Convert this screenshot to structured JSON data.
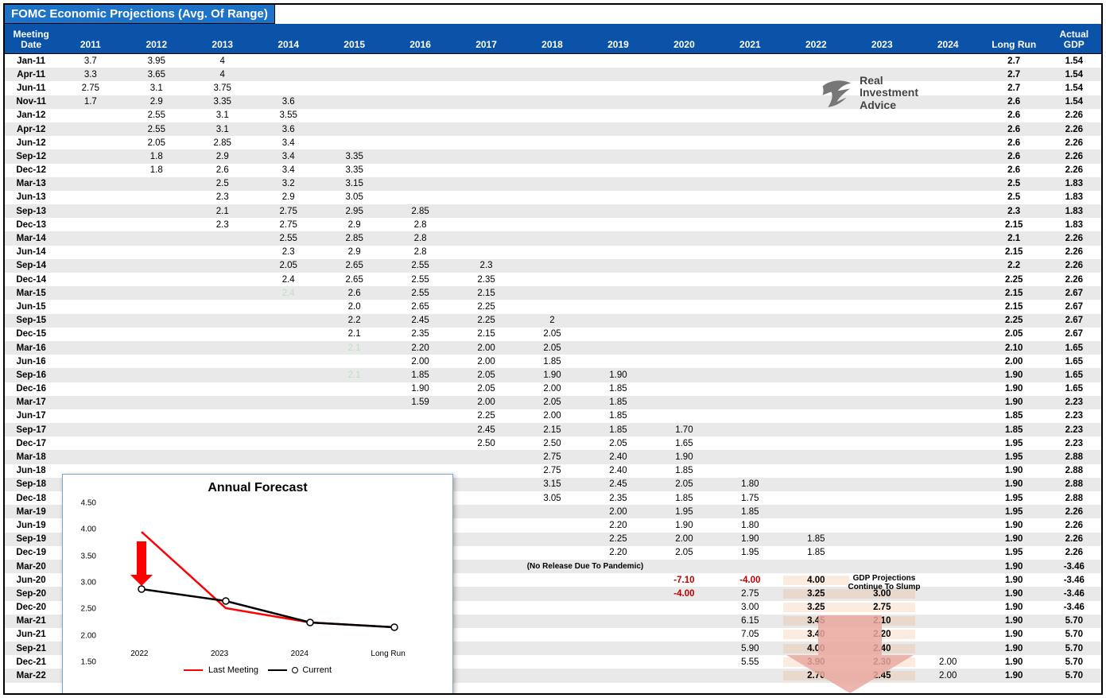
{
  "title": "FOMC Economic Projections (Avg. Of Range)",
  "colors": {
    "title_bg": "#1e72c8",
    "header_bg": "#0a53a8",
    "row_even": "#e9e9e9",
    "row_odd": "#ffffff",
    "negative": "#c00000",
    "highlight_fill": "rgba(237,125,49,0.15)",
    "chart_border": "#7fa6cc",
    "last_meeting_line": "#ff0000",
    "current_line": "#000000",
    "arrow_fill": "#e9a9a0"
  },
  "logo_text": [
    "Real",
    "Investment",
    "Advice"
  ],
  "gdp_note": "GDP Projections Continue To Slump",
  "headers": {
    "meeting": "Meeting\nDate",
    "years": [
      "2011",
      "2012",
      "2013",
      "2014",
      "2015",
      "2016",
      "2017",
      "2018",
      "2019",
      "2020",
      "2021",
      "2022",
      "2023",
      "2024"
    ],
    "long_run": "Long Run",
    "actual_gdp": "Actual\nGDP"
  },
  "rows": [
    {
      "label": "Jan-11",
      "cells": {
        "2011": "3.7",
        "2012": "3.95",
        "2013": "4"
      },
      "long_run": "2.7",
      "gdp": "1.54"
    },
    {
      "label": "Apr-11",
      "cells": {
        "2011": "3.3",
        "2012": "3.65",
        "2013": "4"
      },
      "long_run": "2.7",
      "gdp": "1.54"
    },
    {
      "label": "Jun-11",
      "cells": {
        "2011": "2.75",
        "2012": "3.1",
        "2013": "3.75"
      },
      "long_run": "2.7",
      "gdp": "1.54"
    },
    {
      "label": "Nov-11",
      "cells": {
        "2011": "1.7",
        "2012": "2.9",
        "2013": "3.35",
        "2014": "3.6"
      },
      "long_run": "2.6",
      "gdp": "1.54"
    },
    {
      "label": "Jan-12",
      "cells": {
        "2012": "2.55",
        "2013": "3.1",
        "2014": "3.55"
      },
      "long_run": "2.6",
      "gdp": "2.26"
    },
    {
      "label": "Apr-12",
      "cells": {
        "2012": "2.55",
        "2013": "3.1",
        "2014": "3.6"
      },
      "long_run": "2.6",
      "gdp": "2.26"
    },
    {
      "label": "Jun-12",
      "cells": {
        "2012": "2.05",
        "2013": "2.85",
        "2014": "3.4"
      },
      "long_run": "2.6",
      "gdp": "2.26"
    },
    {
      "label": "Sep-12",
      "cells": {
        "2012": "1.8",
        "2013": "2.9",
        "2014": "3.4",
        "2015": "3.35"
      },
      "long_run": "2.6",
      "gdp": "2.26"
    },
    {
      "label": "Dec-12",
      "cells": {
        "2012": "1.8",
        "2013": "2.6",
        "2014": "3.4",
        "2015": "3.35"
      },
      "long_run": "2.6",
      "gdp": "2.26"
    },
    {
      "label": "Mar-13",
      "cells": {
        "2013": "2.5",
        "2014": "3.2",
        "2015": "3.15"
      },
      "long_run": "2.5",
      "gdp": "1.83"
    },
    {
      "label": "Jun-13",
      "cells": {
        "2013": "2.3",
        "2014": "2.9",
        "2015": "3.05"
      },
      "long_run": "2.5",
      "gdp": "1.83"
    },
    {
      "label": "Sep-13",
      "cells": {
        "2013": "2.1",
        "2014": "2.75",
        "2015": "2.95",
        "2016": "2.85"
      },
      "long_run": "2.3",
      "gdp": "1.83"
    },
    {
      "label": "Dec-13",
      "cells": {
        "2013": "2.3",
        "2014": "2.75",
        "2015": "2.9",
        "2016": "2.8"
      },
      "long_run": "2.15",
      "gdp": "1.83"
    },
    {
      "label": "Mar-14",
      "cells": {
        "2014": "2.55",
        "2015": "2.85",
        "2016": "2.8"
      },
      "long_run": "2.1",
      "gdp": "2.26"
    },
    {
      "label": "Jun-14",
      "cells": {
        "2014": "2.3",
        "2015": "2.9",
        "2016": "2.8"
      },
      "long_run": "2.15",
      "gdp": "2.26"
    },
    {
      "label": "Sep-14",
      "cells": {
        "2014": "2.05",
        "2015": "2.65",
        "2016": "2.55",
        "2017": "2.3"
      },
      "long_run": "2.2",
      "gdp": "2.26"
    },
    {
      "label": "Dec-14",
      "cells": {
        "2014": "2.4",
        "2015": "2.65",
        "2016": "2.55",
        "2017": "2.35"
      },
      "long_run": "2.25",
      "gdp": "2.26"
    },
    {
      "label": "Mar-15",
      "cells": {
        "2015": "2.6",
        "2016": "2.55",
        "2017": "2.15"
      },
      "long_run": "2.15",
      "gdp": "2.67",
      "faded": {
        "2014": "2.4"
      }
    },
    {
      "label": "Jun-15",
      "cells": {
        "2015": "2.0",
        "2016": "2.65",
        "2017": "2.25"
      },
      "long_run": "2.15",
      "gdp": "2.67"
    },
    {
      "label": "Sep-15",
      "cells": {
        "2015": "2.2",
        "2016": "2.45",
        "2017": "2.25",
        "2018": "2"
      },
      "long_run": "2.25",
      "gdp": "2.67"
    },
    {
      "label": "Dec-15",
      "cells": {
        "2015": "2.1",
        "2016": "2.35",
        "2017": "2.15",
        "2018": "2.05"
      },
      "long_run": "2.05",
      "gdp": "2.67"
    },
    {
      "label": "Mar-16",
      "cells": {
        "2016": "2.20",
        "2017": "2.00",
        "2018": "2.05"
      },
      "long_run": "2.10",
      "gdp": "1.65",
      "faded": {
        "2015": "2.1"
      }
    },
    {
      "label": "Jun-16",
      "cells": {
        "2016": "2.00",
        "2017": "2.00",
        "2018": "1.85"
      },
      "long_run": "2.00",
      "gdp": "1.65"
    },
    {
      "label": "Sep-16",
      "cells": {
        "2016": "1.85",
        "2017": "2.05",
        "2018": "1.90",
        "2019": "1.90"
      },
      "long_run": "1.90",
      "gdp": "1.65",
      "faded": {
        "2015": "2.1"
      }
    },
    {
      "label": "Dec-16",
      "cells": {
        "2016": "1.90",
        "2017": "2.05",
        "2018": "2.00",
        "2019": "1.85"
      },
      "long_run": "1.90",
      "gdp": "1.65"
    },
    {
      "label": "Mar-17",
      "cells": {
        "2016": "1.59",
        "2017": "2.00",
        "2018": "2.05",
        "2019": "1.85"
      },
      "long_run": "1.90",
      "gdp": "2.23"
    },
    {
      "label": "Jun-17",
      "cells": {
        "2017": "2.25",
        "2018": "2.00",
        "2019": "1.85"
      },
      "long_run": "1.85",
      "gdp": "2.23"
    },
    {
      "label": "Sep-17",
      "cells": {
        "2017": "2.45",
        "2018": "2.15",
        "2019": "1.85",
        "2020": "1.70"
      },
      "long_run": "1.85",
      "gdp": "2.23"
    },
    {
      "label": "Dec-17",
      "cells": {
        "2017": "2.50",
        "2018": "2.50",
        "2019": "2.05",
        "2020": "1.65"
      },
      "long_run": "1.95",
      "gdp": "2.23"
    },
    {
      "label": "Mar-18",
      "cells": {
        "2018": "2.75",
        "2019": "2.40",
        "2020": "1.90"
      },
      "long_run": "1.95",
      "gdp": "2.88"
    },
    {
      "label": "Jun-18",
      "cells": {
        "2018": "2.75",
        "2019": "2.40",
        "2020": "1.85"
      },
      "long_run": "1.90",
      "gdp": "2.88"
    },
    {
      "label": "Sep-18",
      "cells": {
        "2018": "3.15",
        "2019": "2.45",
        "2020": "2.05",
        "2021": "1.80"
      },
      "long_run": "1.90",
      "gdp": "2.88"
    },
    {
      "label": "Dec-18",
      "cells": {
        "2018": "3.05",
        "2019": "2.35",
        "2020": "1.85",
        "2021": "1.75"
      },
      "long_run": "1.95",
      "gdp": "2.88"
    },
    {
      "label": "Mar-19",
      "cells": {
        "2019": "2.00",
        "2020": "1.95",
        "2021": "1.85"
      },
      "long_run": "1.95",
      "gdp": "2.26"
    },
    {
      "label": "Jun-19",
      "cells": {
        "2019": "2.20",
        "2020": "1.90",
        "2021": "1.80"
      },
      "long_run": "1.90",
      "gdp": "2.26"
    },
    {
      "label": "Sep-19",
      "cells": {
        "2019": "2.25",
        "2020": "2.00",
        "2021": "1.90",
        "2022": "1.85"
      },
      "long_run": "1.90",
      "gdp": "2.26"
    },
    {
      "label": "Dec-19",
      "cells": {
        "2019": "2.20",
        "2020": "2.05",
        "2021": "1.95",
        "2022": "1.85"
      },
      "long_run": "1.95",
      "gdp": "2.26"
    },
    {
      "label": "Mar-20",
      "pandemic": "(No Release Due To Pandemic)",
      "long_run": "1.90",
      "gdp": "-3.46"
    },
    {
      "label": "Jun-20",
      "cells": {
        "2020": "-7.10",
        "2021": "-4.00",
        "2022": "4.00"
      },
      "neg": [
        "2020",
        "2021"
      ],
      "hl": [
        "2022"
      ],
      "long_run": "1.90",
      "gdp": "-3.46"
    },
    {
      "label": "Sep-20",
      "cells": {
        "2020": "-4.00",
        "2021": "2.75",
        "2022": "3.25",
        "2023": "3.00"
      },
      "neg": [
        "2020"
      ],
      "hl": [
        "2022",
        "2023"
      ],
      "long_run": "1.90",
      "gdp": "-3.46"
    },
    {
      "label": "Dec-20",
      "cells": {
        "2021": "3.00",
        "2022": "3.25",
        "2023": "2.75"
      },
      "hl": [
        "2022",
        "2023"
      ],
      "long_run": "1.90",
      "gdp": "-3.46"
    },
    {
      "label": "Mar-21",
      "cells": {
        "2021": "6.15",
        "2022": "3.45",
        "2023": "2.10"
      },
      "hl": [
        "2022",
        "2023"
      ],
      "long_run": "1.90",
      "gdp": "5.70"
    },
    {
      "label": "Jun-21",
      "cells": {
        "2021": "7.05",
        "2022": "3.40",
        "2023": "2.20"
      },
      "hl": [
        "2022",
        "2023"
      ],
      "long_run": "1.90",
      "gdp": "5.70"
    },
    {
      "label": "Sep-21",
      "cells": {
        "2021": "5.90",
        "2022": "4.00",
        "2023": "2.40"
      },
      "hl": [
        "2022",
        "2023"
      ],
      "long_run": "1.90",
      "gdp": "5.70"
    },
    {
      "label": "Dec-21",
      "cells": {
        "2021": "5.55",
        "2022": "3.90",
        "2023": "2.30",
        "2024": "2.00"
      },
      "hl": [
        "2022",
        "2023"
      ],
      "long_run": "1.90",
      "gdp": "5.70"
    },
    {
      "label": "Mar-22",
      "cells": {
        "2022": "2.70",
        "2023": "2.45",
        "2024": "2.00"
      },
      "hl": [
        "2022",
        "2023"
      ],
      "long_run": "1.90",
      "gdp": "5.70"
    }
  ],
  "chart": {
    "title": "Annual Forecast",
    "x_categories": [
      "2022",
      "2023",
      "2024",
      "Long Run"
    ],
    "y_min": 1.5,
    "y_max": 4.5,
    "y_step": 0.5,
    "y_ticks": [
      "4.50",
      "4.00",
      "3.50",
      "3.00",
      "2.50",
      "2.00",
      "1.50"
    ],
    "series": [
      {
        "name": "Last Meeting",
        "color": "#ff0000",
        "values": [
          3.9,
          2.3,
          2.0,
          1.9
        ],
        "marker": false
      },
      {
        "name": "Current",
        "color": "#000000",
        "values": [
          2.7,
          2.45,
          2.0,
          1.9
        ],
        "marker": true
      }
    ],
    "legend": [
      "Last Meeting",
      "Current"
    ],
    "arrow_color": "#ff0000"
  }
}
